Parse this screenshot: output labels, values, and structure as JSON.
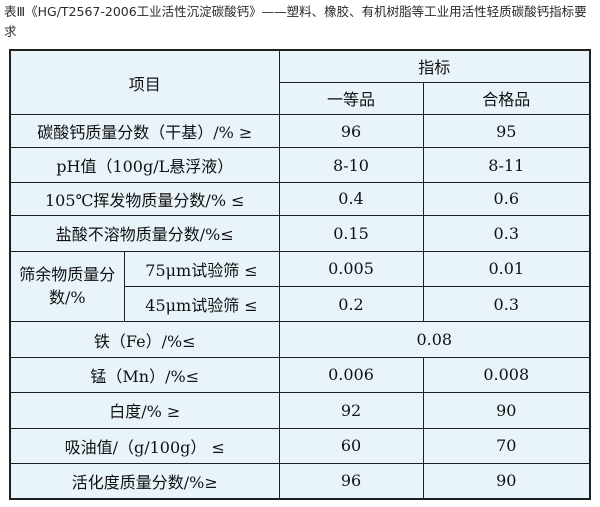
{
  "caption": "表Ⅲ《HG/T2567-2006工业活性沉淀碳酸钙》——塑料、橡胶、有机树脂等工业用活性轻质碳酸钙指标要求",
  "table": {
    "header_item": "项目",
    "header_index": "指标",
    "header_grade1": "一等品",
    "header_grade2": "合格品",
    "rows": [
      {
        "label": "碳酸钙质量分数（干基）/% ≥",
        "v1": "96",
        "v2": "95"
      },
      {
        "label": "pH值（100g/L悬浮液）",
        "v1": "8-10",
        "v2": "8-11"
      },
      {
        "label": "105℃挥发物质量分数/% ≤",
        "v1": "0.4",
        "v2": "0.6"
      },
      {
        "label": "盐酸不溶物质量分数/%≤",
        "v1": "0.15",
        "v2": "0.3"
      }
    ],
    "sieve": {
      "group_label": "筛余物质量分数/%",
      "sub": [
        {
          "label": "75μm试验筛 ≤",
          "v1": "0.005",
          "v2": "0.01"
        },
        {
          "label": "45μm试验筛 ≤",
          "v1": "0.2",
          "v2": "0.3"
        }
      ]
    },
    "iron": {
      "label": "铁（Fe）/%≤",
      "value": "0.08"
    },
    "rows2": [
      {
        "label": "锰（Mn）/%≤",
        "v1": "0.006",
        "v2": "0.008"
      },
      {
        "label": "白度/% ≥",
        "v1": "92",
        "v2": "90"
      },
      {
        "label": "吸油值/（g/100g） ≤",
        "v1": "60",
        "v2": "70"
      },
      {
        "label": "活化度质量分数/%≥",
        "v1": "96",
        "v2": "90"
      }
    ]
  }
}
